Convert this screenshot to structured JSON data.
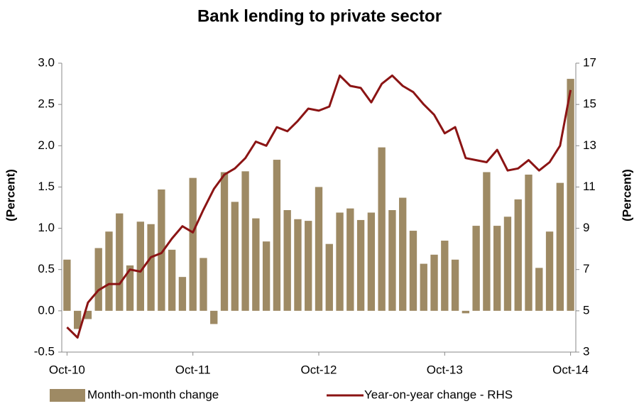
{
  "chart_data": {
    "type": "bar-line",
    "title": "Bank lending to private sector",
    "y_label": "(Percent)",
    "y2_label": "(Percent)",
    "categories": [
      "Oct-10",
      null,
      null,
      null,
      null,
      null,
      null,
      null,
      null,
      null,
      null,
      null,
      "Oct-11",
      null,
      null,
      null,
      null,
      null,
      null,
      null,
      null,
      null,
      null,
      null,
      "Oct-12",
      null,
      null,
      null,
      null,
      null,
      null,
      null,
      null,
      null,
      null,
      null,
      "Oct-13",
      null,
      null,
      null,
      null,
      null,
      null,
      null,
      null,
      null,
      null,
      null,
      "Oct-14"
    ],
    "series": [
      {
        "name": "Month-on-month change",
        "color": "#9e8a64",
        "kind": "bar",
        "values": [
          0.62,
          -0.22,
          -0.1,
          0.76,
          0.96,
          1.18,
          0.55,
          1.08,
          1.05,
          1.47,
          0.74,
          0.41,
          1.61,
          0.64,
          -0.16,
          1.68,
          1.32,
          1.69,
          1.12,
          0.84,
          1.83,
          1.22,
          1.11,
          1.09,
          1.5,
          0.81,
          1.19,
          1.24,
          1.1,
          1.19,
          1.98,
          1.22,
          1.37,
          0.97,
          0.57,
          0.68,
          0.85,
          0.62,
          -0.03,
          1.03,
          1.68,
          1.03,
          1.14,
          1.35,
          1.65,
          0.52,
          0.96,
          1.55,
          2.81
        ]
      },
      {
        "name": "Year-on-year change - RHS",
        "color": "#8b1414",
        "kind": "line",
        "axis": "y2",
        "values": [
          4.2,
          3.7,
          5.4,
          6.0,
          6.3,
          6.3,
          7.0,
          6.9,
          7.6,
          7.8,
          8.5,
          9.1,
          8.8,
          9.9,
          10.9,
          11.6,
          11.9,
          12.4,
          13.2,
          13.0,
          13.9,
          13.7,
          14.2,
          14.8,
          14.7,
          14.9,
          16.4,
          15.9,
          15.8,
          15.1,
          16.0,
          16.4,
          15.9,
          15.6,
          15.0,
          14.5,
          13.6,
          13.9,
          12.4,
          12.3,
          12.2,
          12.8,
          11.8,
          11.9,
          12.3,
          11.8,
          12.2,
          13.0,
          15.7
        ]
      }
    ],
    "ylim": [
      -0.5,
      3
    ],
    "yticks": [
      -0.5,
      {
        "value": 0,
        "label": "0.0"
      },
      0.5,
      {
        "value": 1,
        "label": "1.0"
      },
      1.5,
      {
        "value": 2,
        "label": "2.0"
      },
      2.5,
      {
        "value": 3,
        "label": "3.0"
      }
    ],
    "y2lim": [
      3,
      17
    ],
    "y2ticks": [
      3,
      5,
      7,
      9,
      11,
      13,
      15,
      17
    ],
    "legend": "bottom",
    "grid": false
  }
}
